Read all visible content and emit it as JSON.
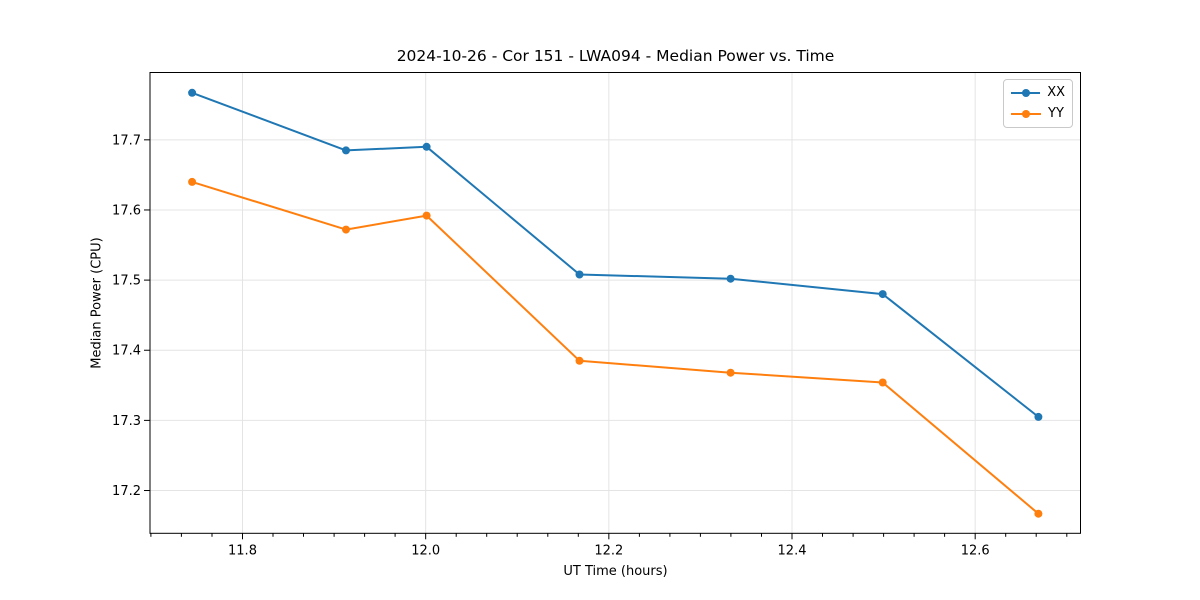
{
  "chart_data": {
    "type": "line",
    "title": "2024-10-26 - Cor 151 - LWA094 - Median Power vs. Time",
    "xlabel": "UT Time (hours)",
    "ylabel": "Median Power (CPU)",
    "x": [
      11.745,
      11.913,
      12.001,
      12.168,
      12.333,
      12.499,
      12.669
    ],
    "series": [
      {
        "name": "XX",
        "color": "#1f77b4",
        "values": [
          17.767,
          17.685,
          17.69,
          17.508,
          17.502,
          17.48,
          17.305
        ]
      },
      {
        "name": "YY",
        "color": "#ff7f0e",
        "values": [
          17.64,
          17.572,
          17.592,
          17.385,
          17.368,
          17.354,
          17.167
        ]
      }
    ],
    "xlim": [
      11.699,
      12.715
    ],
    "ylim": [
      17.139,
      17.796
    ],
    "xticks": {
      "values": [
        11.8,
        12.0,
        12.2,
        12.4,
        12.6
      ],
      "labels": [
        "11.8",
        "12.0",
        "12.2",
        "12.4",
        "12.6"
      ]
    },
    "yticks": {
      "values": [
        17.2,
        17.3,
        17.4,
        17.5,
        17.6,
        17.7
      ],
      "labels": [
        "17.2",
        "17.3",
        "17.4",
        "17.5",
        "17.6",
        "17.7"
      ]
    },
    "x_minor_step": 0.0333333,
    "grid": true,
    "legend": {
      "position": "upper right",
      "entries": [
        "XX",
        "YY"
      ]
    },
    "colors": {
      "grid": "#e4e4e4",
      "spine": "#000000",
      "text": "#000000"
    },
    "marker": "circle",
    "line_width": 2,
    "marker_radius": 4
  }
}
